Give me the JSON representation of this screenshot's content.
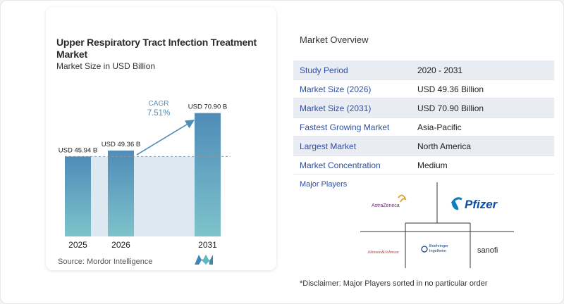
{
  "chart": {
    "title": "Upper Respiratory Tract Infection Treatment Market",
    "subtitle": "Market Size in USD Billion",
    "source": "Source:  Mordor Intelligence"
  },
  "chart_data": {
    "type": "bar",
    "title": "Upper Respiratory Tract Infection Treatment Market",
    "subtitle": "Market Size in USD Billion",
    "categories": [
      "2025",
      "2026",
      "2031"
    ],
    "values": [
      45.94,
      49.36,
      70.9
    ],
    "value_labels": [
      "USD 45.94 B",
      "USD 49.36 B",
      "USD 70.90 B"
    ],
    "cagr_label": "CAGR",
    "cagr_value": "7.51%",
    "ylabel": "",
    "xlabel": "",
    "ylim": [
      0,
      74
    ],
    "grid": false,
    "bar_color_top": "#4f8cb8",
    "bar_color_bottom": "#7ec3cb",
    "shade_color": "#dde8f0"
  },
  "overview": {
    "title": "Market Overview",
    "rows": [
      {
        "key": "Study Period",
        "value": "2020 - 2031"
      },
      {
        "key": "Market Size (2026)",
        "value": "USD 49.36 Billion"
      },
      {
        "key": "Market Size (2031)",
        "value": "USD 70.90 Billion"
      },
      {
        "key": "Fastest Growing Market",
        "value": "Asia-Pacific"
      },
      {
        "key": "Largest Market",
        "value": "North America"
      },
      {
        "key": "Market Concentration",
        "value": "Medium"
      }
    ]
  },
  "players": {
    "title": "Major Players",
    "logos": [
      "AstraZeneca",
      "Pfizer",
      "Boehringer Ingelheim",
      "Johnson&Johnson",
      "sanofi"
    ]
  },
  "disclaimer": "*Disclaimer: Major Players sorted in no particular order",
  "colors": {
    "accent": "#2f4fa2",
    "row_shade": "#e9ecf3"
  }
}
